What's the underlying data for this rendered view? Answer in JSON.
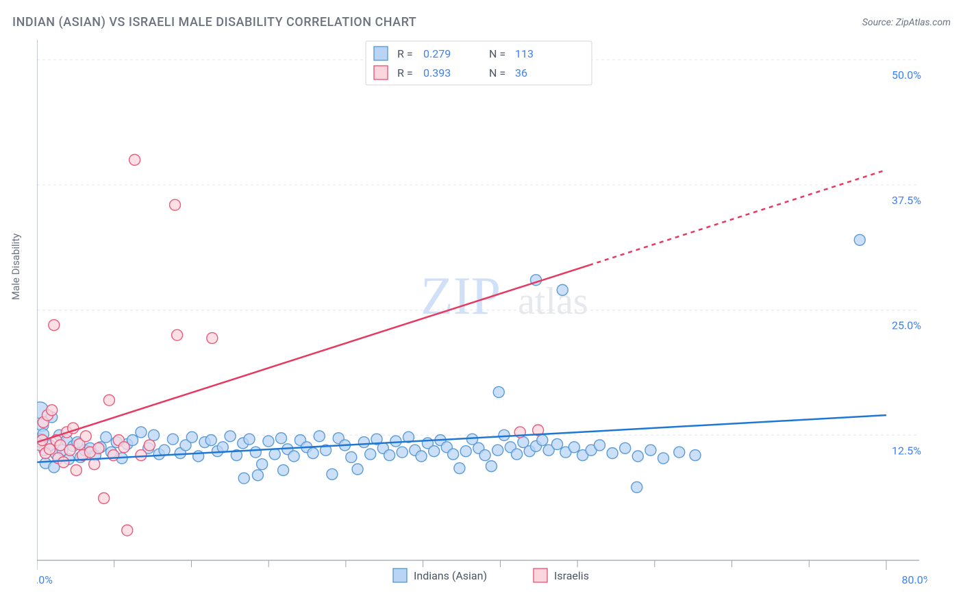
{
  "title": "INDIAN (ASIAN) VS ISRAELI MALE DISABILITY CORRELATION CHART",
  "source": "Source: ZipAtlas.com",
  "ylabel": "Male Disability",
  "watermark": {
    "zip": "ZIP",
    "atlas": "atlas"
  },
  "chart": {
    "type": "scatter",
    "background_color": "#ffffff",
    "grid_color": "#e5e7eb",
    "grid_dash": "4 4",
    "axis_color": "#9ca3af",
    "xlim": [
      0,
      80
    ],
    "ylim": [
      0,
      52
    ],
    "xticks_major": [
      0,
      80
    ],
    "xticks_minor": [
      7.27,
      14.55,
      21.82,
      29.09,
      36.36,
      43.64,
      50.91,
      58.18,
      65.45,
      72.73
    ],
    "yticks": [
      12.5,
      25.0,
      37.5,
      50.0
    ],
    "ytick_labels": [
      "12.5%",
      "25.0%",
      "37.5%",
      "50.0%"
    ],
    "xtick_labels": {
      "min": "0.0%",
      "max": "80.0%"
    },
    "label_color": "#3b82f6",
    "label_fontsize": 16,
    "title_color": "#6b7280",
    "title_fontsize": 18
  },
  "series": [
    {
      "name": "Indians (Asian)",
      "marker_fill": "#b9d4f5",
      "marker_stroke": "#5b9bd5",
      "marker_opacity": 0.75,
      "marker_r": 8,
      "line_color": "#1f77d4",
      "line_width": 2.5,
      "R": "0.279",
      "N": "113",
      "trend": {
        "x1": 0,
        "y1": 9.8,
        "x2": 80,
        "y2": 14.5,
        "dash_from_x": null
      },
      "points": [
        [
          0.3,
          15.0,
          12
        ],
        [
          0.3,
          12.0,
          10
        ],
        [
          0.5,
          13.5,
          9
        ],
        [
          0.6,
          12.6,
          8
        ],
        [
          0.7,
          11.0,
          8
        ],
        [
          1.2,
          11.5,
          8
        ],
        [
          1.4,
          14.3,
          8
        ],
        [
          1.8,
          10.6,
          8
        ],
        [
          2.1,
          12.5,
          8
        ],
        [
          2.4,
          11.0,
          8
        ],
        [
          2.8,
          12.0,
          8
        ],
        [
          3.0,
          10.1,
          8
        ],
        [
          3.4,
          11.4,
          8
        ],
        [
          3.8,
          11.8,
          8
        ],
        [
          4.1,
          10.3,
          8
        ],
        [
          4.5,
          11.0,
          8
        ],
        [
          5.0,
          11.2,
          8
        ],
        [
          5.5,
          10.5,
          8
        ],
        [
          6.0,
          11.3,
          8
        ],
        [
          6.5,
          12.3,
          8
        ],
        [
          7.0,
          10.8,
          8
        ],
        [
          7.5,
          11.8,
          8
        ],
        [
          8.0,
          10.2,
          8
        ],
        [
          8.5,
          11.6,
          8
        ],
        [
          9.0,
          12.0,
          8
        ],
        [
          9.8,
          12.8,
          8
        ],
        [
          10.5,
          11.2,
          8
        ],
        [
          11.0,
          12.5,
          8
        ],
        [
          11.5,
          10.6,
          8
        ],
        [
          12.0,
          11.0,
          8
        ],
        [
          12.8,
          12.1,
          8
        ],
        [
          13.5,
          10.7,
          8
        ],
        [
          14.0,
          11.5,
          8
        ],
        [
          14.6,
          12.3,
          8
        ],
        [
          15.2,
          10.4,
          8
        ],
        [
          15.8,
          11.8,
          8
        ],
        [
          16.4,
          12.0,
          8
        ],
        [
          17.0,
          10.9,
          8
        ],
        [
          17.5,
          11.3,
          8
        ],
        [
          18.2,
          12.4,
          8
        ],
        [
          18.8,
          10.5,
          8
        ],
        [
          19.4,
          11.7,
          8
        ],
        [
          20.0,
          12.1,
          8
        ],
        [
          20.6,
          10.8,
          8
        ],
        [
          21.2,
          9.6,
          8
        ],
        [
          21.8,
          11.9,
          8
        ],
        [
          22.4,
          10.6,
          8
        ],
        [
          19.5,
          8.2,
          8
        ],
        [
          20.8,
          8.5,
          8
        ],
        [
          23.2,
          9.0,
          8
        ],
        [
          23.0,
          12.2,
          8
        ],
        [
          23.6,
          11.1,
          8
        ],
        [
          24.2,
          10.4,
          8
        ],
        [
          24.8,
          12.0,
          8
        ],
        [
          25.4,
          11.3,
          8
        ],
        [
          26.0,
          10.7,
          8
        ],
        [
          26.6,
          12.4,
          8
        ],
        [
          27.2,
          11.0,
          8
        ],
        [
          27.8,
          8.6,
          8
        ],
        [
          28.4,
          12.2,
          8
        ],
        [
          29.0,
          11.5,
          8
        ],
        [
          29.6,
          10.3,
          8
        ],
        [
          30.2,
          9.1,
          8
        ],
        [
          30.8,
          11.8,
          8
        ],
        [
          31.4,
          10.6,
          8
        ],
        [
          32.0,
          12.1,
          8
        ],
        [
          32.6,
          11.2,
          8
        ],
        [
          33.2,
          10.5,
          8
        ],
        [
          33.8,
          11.9,
          8
        ],
        [
          34.4,
          10.8,
          8
        ],
        [
          35.0,
          12.3,
          8
        ],
        [
          35.6,
          11.0,
          8
        ],
        [
          36.2,
          10.4,
          8
        ],
        [
          36.8,
          11.7,
          8
        ],
        [
          37.4,
          10.9,
          8
        ],
        [
          38.0,
          12.0,
          8
        ],
        [
          38.6,
          11.3,
          8
        ],
        [
          39.2,
          10.6,
          8
        ],
        [
          39.8,
          9.2,
          8
        ],
        [
          40.4,
          10.9,
          8
        ],
        [
          41.0,
          12.1,
          8
        ],
        [
          41.6,
          11.2,
          8
        ],
        [
          42.2,
          10.5,
          8
        ],
        [
          42.8,
          9.4,
          8
        ],
        [
          43.4,
          11.0,
          8
        ],
        [
          44.0,
          12.5,
          8
        ],
        [
          44.6,
          11.3,
          8
        ],
        [
          45.2,
          10.6,
          8
        ],
        [
          45.8,
          11.8,
          8
        ],
        [
          46.4,
          10.9,
          8
        ],
        [
          47.0,
          11.4,
          8
        ],
        [
          47.6,
          12.0,
          8
        ],
        [
          48.2,
          11.0,
          8
        ],
        [
          43.5,
          16.8,
          8
        ],
        [
          49.0,
          11.6,
          8
        ],
        [
          49.8,
          10.8,
          8
        ],
        [
          50.6,
          11.3,
          8
        ],
        [
          51.4,
          10.5,
          8
        ],
        [
          52.2,
          11.0,
          8
        ],
        [
          53.0,
          11.5,
          8
        ],
        [
          54.2,
          10.7,
          8
        ],
        [
          55.4,
          11.2,
          8
        ],
        [
          56.6,
          10.4,
          8
        ],
        [
          57.8,
          11.0,
          8
        ],
        [
          47.0,
          28.0,
          8
        ],
        [
          49.5,
          27.0,
          8
        ],
        [
          59.0,
          10.2,
          8
        ],
        [
          60.5,
          10.8,
          8
        ],
        [
          62.0,
          10.5,
          8
        ],
        [
          56.5,
          7.3,
          8
        ],
        [
          77.5,
          32.0,
          8
        ],
        [
          0.8,
          9.7,
          8
        ],
        [
          1.6,
          9.3,
          8
        ]
      ]
    },
    {
      "name": "Israelis",
      "marker_fill": "#fcd6de",
      "marker_stroke": "#e85b7a",
      "marker_opacity": 0.75,
      "marker_r": 8,
      "line_color": "#e63960",
      "line_width": 2.5,
      "R": "0.393",
      "N": "36",
      "trend": {
        "x1": 0,
        "y1": 11.8,
        "x2": 80,
        "y2": 39.0,
        "dash_from_x": 52
      },
      "points": [
        [
          0.3,
          11.5,
          8
        ],
        [
          0.5,
          12.0,
          8
        ],
        [
          0.6,
          13.8,
          8
        ],
        [
          0.8,
          10.7,
          8
        ],
        [
          1.0,
          14.5,
          8
        ],
        [
          1.2,
          11.1,
          8
        ],
        [
          1.4,
          15.0,
          8
        ],
        [
          1.6,
          23.5,
          8
        ],
        [
          1.8,
          12.0,
          8
        ],
        [
          2.0,
          10.2,
          8
        ],
        [
          2.2,
          11.5,
          8
        ],
        [
          2.5,
          9.8,
          8
        ],
        [
          2.8,
          12.8,
          8
        ],
        [
          3.1,
          11.0,
          8
        ],
        [
          3.4,
          13.2,
          8
        ],
        [
          3.7,
          9.0,
          8
        ],
        [
          4.0,
          11.6,
          8
        ],
        [
          4.3,
          10.5,
          8
        ],
        [
          4.6,
          12.4,
          8
        ],
        [
          5.0,
          10.8,
          8
        ],
        [
          5.4,
          9.6,
          8
        ],
        [
          5.8,
          11.2,
          8
        ],
        [
          6.3,
          6.2,
          8
        ],
        [
          6.8,
          16.0,
          8
        ],
        [
          7.2,
          10.5,
          8
        ],
        [
          7.7,
          12.0,
          8
        ],
        [
          8.2,
          11.3,
          8
        ],
        [
          8.5,
          3.0,
          8
        ],
        [
          9.2,
          40.0,
          8
        ],
        [
          13.0,
          35.5,
          8
        ],
        [
          13.2,
          22.5,
          8
        ],
        [
          16.5,
          22.2,
          8
        ],
        [
          45.5,
          12.8,
          8
        ],
        [
          47.2,
          13.0,
          8
        ],
        [
          9.8,
          10.5,
          8
        ],
        [
          10.6,
          11.5,
          8
        ]
      ]
    }
  ],
  "legend_top": {
    "rows": [
      {
        "swatch_fill": "#b9d4f5",
        "swatch_stroke": "#5b9bd5",
        "R_label": "R =",
        "R_val": "0.279",
        "N_label": "N =",
        "N_val": "113"
      },
      {
        "swatch_fill": "#fcd6de",
        "swatch_stroke": "#e85b7a",
        "R_label": "R =",
        "R_val": "0.393",
        "N_label": "N =",
        "N_val": "36"
      }
    ]
  },
  "legend_bottom": {
    "items": [
      {
        "swatch_fill": "#b9d4f5",
        "swatch_stroke": "#5b9bd5",
        "label": "Indians (Asian)"
      },
      {
        "swatch_fill": "#fcd6de",
        "swatch_stroke": "#e85b7a",
        "label": "Israelis"
      }
    ]
  }
}
